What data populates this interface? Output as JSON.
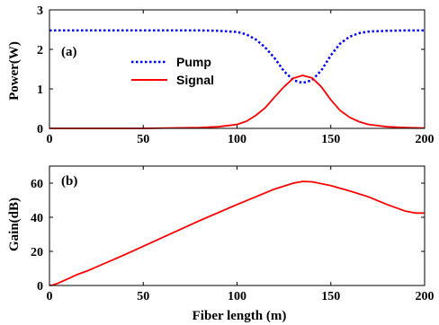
{
  "chart_data": [
    {
      "type": "line",
      "panel_label": "(a)",
      "xlabel": "",
      "ylabel": "Power(W)",
      "xlim": [
        0,
        200
      ],
      "ylim": [
        0,
        3
      ],
      "xticks": [
        0,
        50,
        100,
        150,
        200
      ],
      "yticks": [
        0,
        1,
        2,
        3
      ],
      "grid": false,
      "legend_position": "center-left",
      "series": [
        {
          "name": "Pump",
          "color": "#0000ff",
          "style": "dotted",
          "x": [
            0,
            50,
            80,
            90,
            100,
            105,
            110,
            115,
            120,
            125,
            130,
            135,
            140,
            145,
            150,
            155,
            160,
            165,
            170,
            180,
            190,
            200
          ],
          "y": [
            2.48,
            2.48,
            2.48,
            2.47,
            2.44,
            2.38,
            2.25,
            2.05,
            1.78,
            1.45,
            1.22,
            1.15,
            1.22,
            1.47,
            1.85,
            2.15,
            2.32,
            2.41,
            2.45,
            2.47,
            2.48,
            2.48
          ]
        },
        {
          "name": "Signal",
          "color": "#ff0000",
          "style": "solid",
          "x": [
            0,
            50,
            80,
            90,
            100,
            105,
            110,
            115,
            120,
            125,
            130,
            135,
            140,
            145,
            150,
            155,
            160,
            165,
            170,
            180,
            190,
            200
          ],
          "y": [
            0,
            0,
            0.02,
            0.04,
            0.1,
            0.18,
            0.33,
            0.52,
            0.79,
            1.05,
            1.27,
            1.34,
            1.28,
            1.05,
            0.72,
            0.45,
            0.28,
            0.17,
            0.1,
            0.04,
            0.02,
            0.01
          ]
        }
      ]
    },
    {
      "type": "line",
      "panel_label": "(b)",
      "xlabel": "Fiber length (m)",
      "ylabel": "Gain(dB)",
      "xlim": [
        0,
        200
      ],
      "ylim": [
        0,
        70
      ],
      "xticks": [
        0,
        50,
        100,
        150,
        200
      ],
      "yticks": [
        0,
        20,
        40,
        60
      ],
      "grid": false,
      "series": [
        {
          "name": "",
          "color": "#ff0000",
          "style": "solid",
          "x": [
            0,
            2,
            5,
            10,
            15,
            20,
            40,
            60,
            80,
            100,
            110,
            120,
            130,
            135,
            140,
            150,
            160,
            170,
            180,
            190,
            195,
            200
          ],
          "y": [
            0,
            0.3,
            1.5,
            4,
            6.5,
            8.5,
            18,
            28,
            38,
            47.5,
            52,
            56.5,
            60,
            61,
            60.8,
            58.5,
            55.5,
            52,
            47.5,
            43.5,
            42.5,
            42.5
          ]
        }
      ]
    }
  ]
}
